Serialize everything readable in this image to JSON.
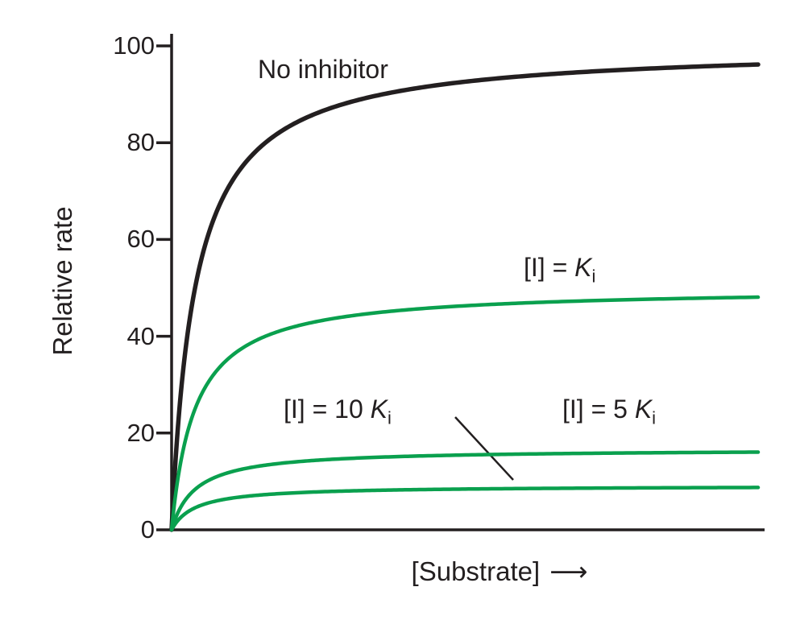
{
  "figure": {
    "background": "#ffffff",
    "ink_color": "#231f20",
    "accent_green": "#0aa04e"
  },
  "chart_data": {
    "type": "line",
    "title": "",
    "xlabel": "[Substrate]",
    "xlabel_arrow": "⟶",
    "ylabel": "Relative rate",
    "xlim": [
      0,
      10
    ],
    "ylim": [
      0,
      100
    ],
    "yticks": [
      0,
      20,
      40,
      60,
      80,
      100
    ],
    "xticks": [],
    "grid": false,
    "legend": "inline-annotations",
    "model": "michaelis-menten: v = vmax*[S]/(km+[S]); noncompetitive inhibition (vmax decreases, km unchanged)",
    "series": [
      {
        "name": "No inhibitor",
        "color": "#231f20",
        "vmax": 100.0,
        "km": 0.4,
        "plateau_shown": 95
      },
      {
        "name": "[I] = Ki",
        "color": "#0aa04e",
        "vmax": 50.0,
        "km": 0.4,
        "plateau_shown": 48
      },
      {
        "name": "[I] = 5 Ki",
        "color": "#0aa04e",
        "vmax": 16.7,
        "km": 0.4,
        "plateau_shown": 16
      },
      {
        "name": "[I] = 10 Ki",
        "color": "#0aa04e",
        "vmax": 9.1,
        "km": 0.4,
        "plateau_shown": 9
      }
    ],
    "annotations": {
      "no_inhibitor": {
        "text": "No inhibitor"
      },
      "ki": {
        "prefix": "[I] = ",
        "k": "K",
        "sub": "i"
      },
      "ki10": {
        "prefix": "[I] = 10 ",
        "k": "K",
        "sub": "i"
      },
      "ki5": {
        "prefix": "[I] = 5 ",
        "k": "K",
        "sub": "i"
      }
    }
  }
}
